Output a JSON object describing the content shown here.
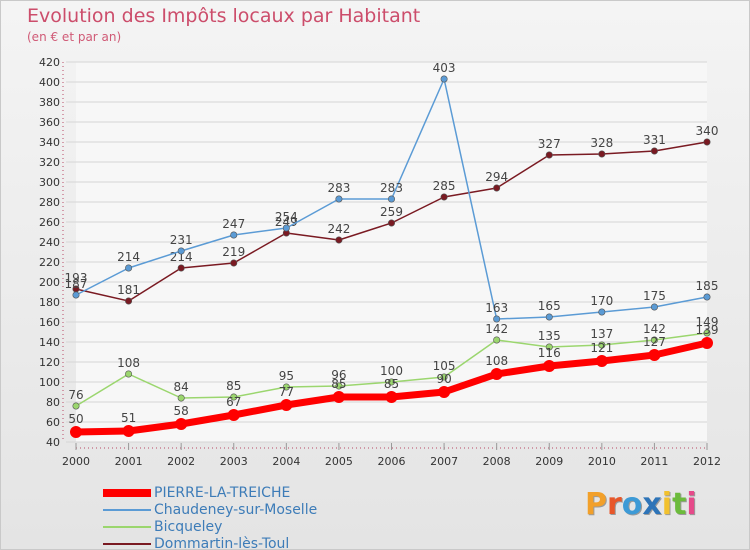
{
  "title": "Evolution des Impôts locaux par Habitant",
  "subtitle": "(en € et par an)",
  "logo": {
    "text": "Proxiti",
    "letter_colors": [
      "#f2a02a",
      "#e8572a",
      "#3d9ad6",
      "#2e74b8",
      "#f2c12e",
      "#6cbb3c",
      "#e64a8a"
    ]
  },
  "chart_data": {
    "type": "line",
    "title": "Evolution des Impôts locaux par Habitant",
    "subtitle": "(en € et par an)",
    "xlabel": "",
    "ylabel": "",
    "x": [
      "2000",
      "2001",
      "2002",
      "2003",
      "2004",
      "2005",
      "2006",
      "2007",
      "2008",
      "2009",
      "2010",
      "2011",
      "2012"
    ],
    "ylim": [
      40,
      420
    ],
    "yticks": [
      40,
      60,
      80,
      100,
      120,
      140,
      160,
      180,
      200,
      220,
      240,
      260,
      280,
      300,
      320,
      340,
      360,
      380,
      400,
      420
    ],
    "grid": "horizontal",
    "legend_position": "bottom-left",
    "series": [
      {
        "name": "Dommartin-lès-Toul",
        "color": "#7a1a22",
        "values": [
          193,
          181,
          214,
          219,
          249,
          242,
          259,
          285,
          294,
          327,
          328,
          331,
          340
        ]
      },
      {
        "name": "Chaudeney-sur-Moselle",
        "color": "#5b9bd5",
        "values": [
          187,
          214,
          231,
          247,
          254,
          283,
          283,
          403,
          163,
          165,
          170,
          175,
          185
        ]
      },
      {
        "name": "Bicqueley",
        "color": "#9bd66e",
        "values": [
          76,
          108,
          84,
          85,
          95,
          96,
          100,
          105,
          142,
          135,
          137,
          142,
          149
        ]
      },
      {
        "name": "PIERRE-LA-TREICHE",
        "color": "#ff0000",
        "values": [
          50,
          51,
          58,
          67,
          77,
          85,
          85,
          90,
          108,
          116,
          121,
          127,
          139
        ]
      }
    ]
  },
  "legend": {
    "items": [
      {
        "label": "PIERRE-LA-TREICHE",
        "color": "#ff0000",
        "thick": true
      },
      {
        "label": "Chaudeney-sur-Moselle",
        "color": "#5b9bd5",
        "thick": false
      },
      {
        "label": "Bicqueley",
        "color": "#9bd66e",
        "thick": false
      },
      {
        "label": "Dommartin-lès-Toul",
        "color": "#7a1a22",
        "thick": false
      }
    ]
  }
}
